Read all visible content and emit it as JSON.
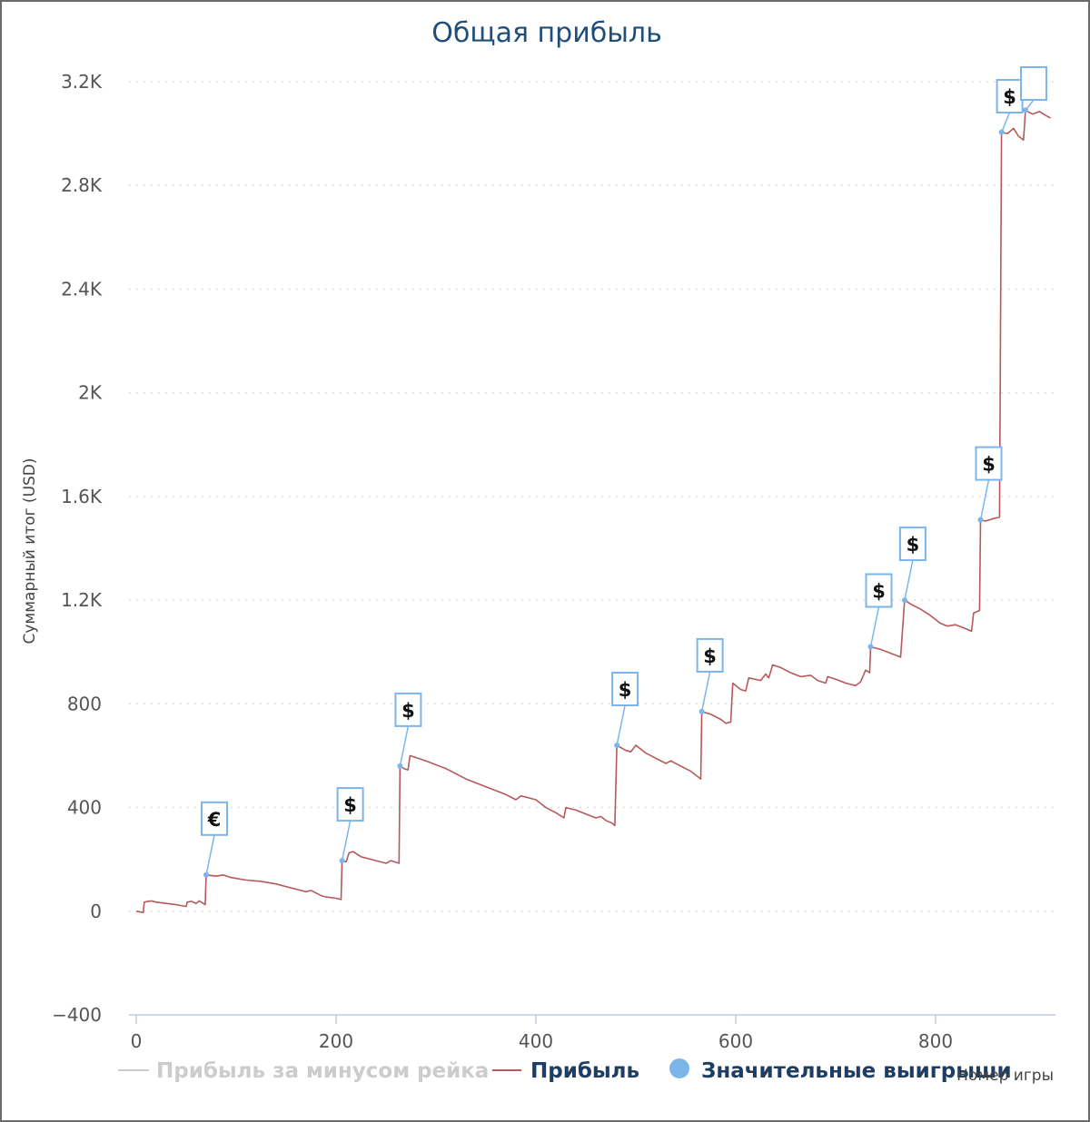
{
  "chart_data": {
    "type": "line",
    "title": "Общая прибыль",
    "xlabel": "Номер игры",
    "ylabel": "Суммарный итог (USD)",
    "xlim": [
      0,
      920
    ],
    "ylim": [
      -400,
      3200
    ],
    "x_ticks": [
      {
        "value": 0,
        "label": "0"
      },
      {
        "value": 200,
        "label": "200"
      },
      {
        "value": 400,
        "label": "400"
      },
      {
        "value": 600,
        "label": "600"
      },
      {
        "value": 800,
        "label": "800"
      }
    ],
    "y_ticks": [
      {
        "value": 3200,
        "label": "3.2K"
      },
      {
        "value": 2800,
        "label": "2.8K"
      },
      {
        "value": 2400,
        "label": "2.4K"
      },
      {
        "value": 2000,
        "label": "2K"
      },
      {
        "value": 1600,
        "label": "1.6K"
      },
      {
        "value": 1200,
        "label": "1.2K"
      },
      {
        "value": 800,
        "label": "800"
      },
      {
        "value": 400,
        "label": "400"
      },
      {
        "value": 0,
        "label": "0"
      },
      {
        "value": -400,
        "label": "−400"
      }
    ],
    "grid": "horizontal dotted",
    "legend_position": "bottom",
    "series": [
      {
        "name": "Прибыль за минусом рейка",
        "color": "#cccccc",
        "visible": false,
        "points": []
      },
      {
        "name": "Прибыль",
        "color": "#b5595b",
        "visible": true,
        "points": [
          [
            0,
            0
          ],
          [
            7,
            -5
          ],
          [
            8,
            35
          ],
          [
            12,
            38
          ],
          [
            15,
            40
          ],
          [
            20,
            35
          ],
          [
            30,
            30
          ],
          [
            40,
            25
          ],
          [
            50,
            18
          ],
          [
            51,
            35
          ],
          [
            55,
            38
          ],
          [
            60,
            30
          ],
          [
            63,
            40
          ],
          [
            67,
            30
          ],
          [
            69,
            25
          ],
          [
            70,
            140
          ],
          [
            80,
            135
          ],
          [
            87,
            140
          ],
          [
            95,
            130
          ],
          [
            110,
            120
          ],
          [
            125,
            115
          ],
          [
            140,
            105
          ],
          [
            155,
            90
          ],
          [
            170,
            75
          ],
          [
            175,
            80
          ],
          [
            185,
            60
          ],
          [
            190,
            55
          ],
          [
            200,
            50
          ],
          [
            205,
            45
          ],
          [
            206,
            195
          ],
          [
            210,
            190
          ],
          [
            213,
            225
          ],
          [
            217,
            230
          ],
          [
            225,
            210
          ],
          [
            240,
            195
          ],
          [
            250,
            185
          ],
          [
            255,
            195
          ],
          [
            263,
            185
          ],
          [
            264,
            560
          ],
          [
            268,
            550
          ],
          [
            272,
            545
          ],
          [
            274,
            600
          ],
          [
            290,
            580
          ],
          [
            310,
            550
          ],
          [
            330,
            510
          ],
          [
            350,
            480
          ],
          [
            370,
            450
          ],
          [
            380,
            430
          ],
          [
            385,
            445
          ],
          [
            390,
            440
          ],
          [
            400,
            430
          ],
          [
            410,
            400
          ],
          [
            420,
            380
          ],
          [
            428,
            360
          ],
          [
            430,
            400
          ],
          [
            440,
            390
          ],
          [
            450,
            375
          ],
          [
            460,
            360
          ],
          [
            465,
            365
          ],
          [
            470,
            350
          ],
          [
            476,
            340
          ],
          [
            479,
            330
          ],
          [
            481,
            640
          ],
          [
            490,
            620
          ],
          [
            495,
            615
          ],
          [
            500,
            640
          ],
          [
            510,
            610
          ],
          [
            520,
            590
          ],
          [
            530,
            570
          ],
          [
            535,
            580
          ],
          [
            545,
            560
          ],
          [
            555,
            540
          ],
          [
            565,
            510
          ],
          [
            566,
            770
          ],
          [
            575,
            760
          ],
          [
            585,
            740
          ],
          [
            590,
            725
          ],
          [
            595,
            730
          ],
          [
            597,
            880
          ],
          [
            605,
            855
          ],
          [
            610,
            850
          ],
          [
            613,
            900
          ],
          [
            625,
            890
          ],
          [
            630,
            915
          ],
          [
            633,
            900
          ],
          [
            637,
            950
          ],
          [
            645,
            940
          ],
          [
            655,
            920
          ],
          [
            665,
            905
          ],
          [
            675,
            910
          ],
          [
            682,
            890
          ],
          [
            690,
            880
          ],
          [
            692,
            905
          ],
          [
            700,
            895
          ],
          [
            710,
            880
          ],
          [
            720,
            870
          ],
          [
            725,
            885
          ],
          [
            730,
            930
          ],
          [
            734,
            920
          ],
          [
            735,
            1020
          ],
          [
            745,
            1010
          ],
          [
            755,
            995
          ],
          [
            765,
            980
          ],
          [
            769,
            1200
          ],
          [
            775,
            1185
          ],
          [
            785,
            1165
          ],
          [
            795,
            1140
          ],
          [
            805,
            1110
          ],
          [
            812,
            1100
          ],
          [
            820,
            1105
          ],
          [
            830,
            1090
          ],
          [
            836,
            1080
          ],
          [
            838,
            1150
          ],
          [
            844,
            1160
          ],
          [
            845,
            1510
          ],
          [
            850,
            1505
          ],
          [
            858,
            1515
          ],
          [
            864,
            1520
          ],
          [
            866,
            3005
          ],
          [
            872,
            3000
          ],
          [
            878,
            3020
          ],
          [
            883,
            2990
          ],
          [
            888,
            2975
          ],
          [
            890,
            3090
          ],
          [
            897,
            3075
          ],
          [
            904,
            3085
          ],
          [
            910,
            3070
          ],
          [
            915,
            3060
          ]
        ]
      },
      {
        "name": "Значительные выигрыши",
        "color": "#7cb5ec",
        "visible": true,
        "markers": [
          {
            "x": 70,
            "y": 140,
            "label": "€"
          },
          {
            "x": 206,
            "y": 195,
            "label": "$"
          },
          {
            "x": 264,
            "y": 560,
            "label": "$"
          },
          {
            "x": 481,
            "y": 640,
            "label": "$"
          },
          {
            "x": 566,
            "y": 770,
            "label": "$"
          },
          {
            "x": 735,
            "y": 1020,
            "label": "$"
          },
          {
            "x": 769,
            "y": 1200,
            "label": "$"
          },
          {
            "x": 845,
            "y": 1510,
            "label": "$"
          },
          {
            "x": 866,
            "y": 3005,
            "label": "$"
          },
          {
            "x": 890,
            "y": 3090,
            "label": ""
          }
        ]
      }
    ]
  }
}
